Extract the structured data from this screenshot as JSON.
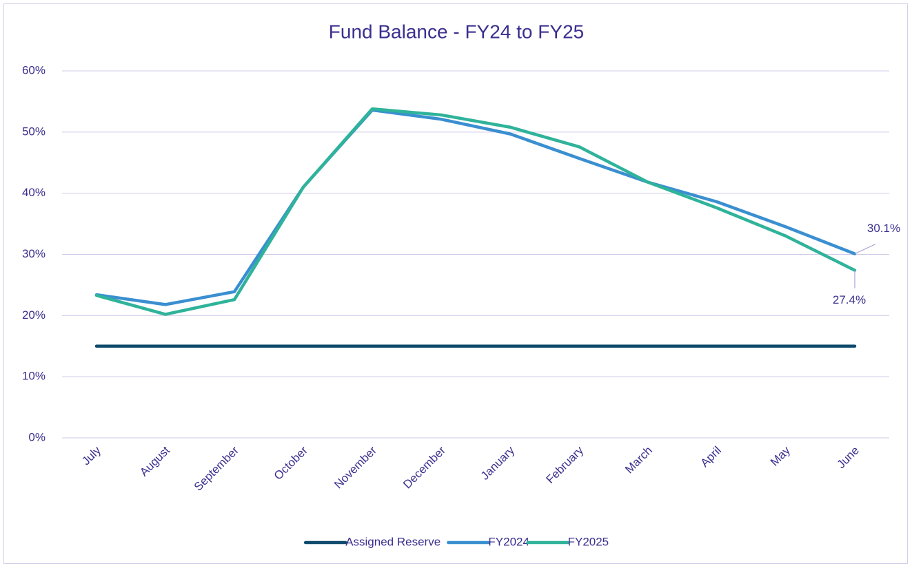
{
  "chart_data": {
    "type": "line",
    "title": "Fund Balance - FY24 to FY25",
    "categories": [
      "July",
      "August",
      "September",
      "October",
      "November",
      "December",
      "January",
      "February",
      "March",
      "April",
      "May",
      "June"
    ],
    "series": [
      {
        "name": "Assigned Reserve",
        "color": "#0e4a6b",
        "values": [
          15,
          15,
          15,
          15,
          15,
          15,
          15,
          15,
          15,
          15,
          15,
          15
        ]
      },
      {
        "name": "FY2024",
        "color": "#3a8fd0",
        "values": [
          23.4,
          21.8,
          23.9,
          41.0,
          53.6,
          52.1,
          49.7,
          45.7,
          41.8,
          38.6,
          34.5,
          30.1
        ],
        "value_labels": [
          null,
          null,
          null,
          null,
          null,
          null,
          null,
          null,
          null,
          null,
          null,
          "30.1%"
        ]
      },
      {
        "name": "FY2025",
        "color": "#2fb39a",
        "values": [
          23.3,
          20.2,
          22.6,
          41.0,
          53.8,
          52.8,
          50.8,
          47.6,
          41.8,
          37.6,
          33.0,
          27.4
        ],
        "value_labels": [
          null,
          null,
          null,
          null,
          null,
          null,
          null,
          null,
          null,
          null,
          null,
          "27.4%"
        ]
      }
    ],
    "ylim": [
      0,
      60
    ],
    "yticks": [
      {
        "value": 0,
        "label": "0%"
      },
      {
        "value": 10,
        "label": "10%"
      },
      {
        "value": 20,
        "label": "20%"
      },
      {
        "value": 30,
        "label": "30%"
      },
      {
        "value": 40,
        "label": "40%"
      },
      {
        "value": 50,
        "label": "50%"
      },
      {
        "value": 60,
        "label": "60%"
      }
    ],
    "grid": true,
    "legend": "bottom"
  }
}
